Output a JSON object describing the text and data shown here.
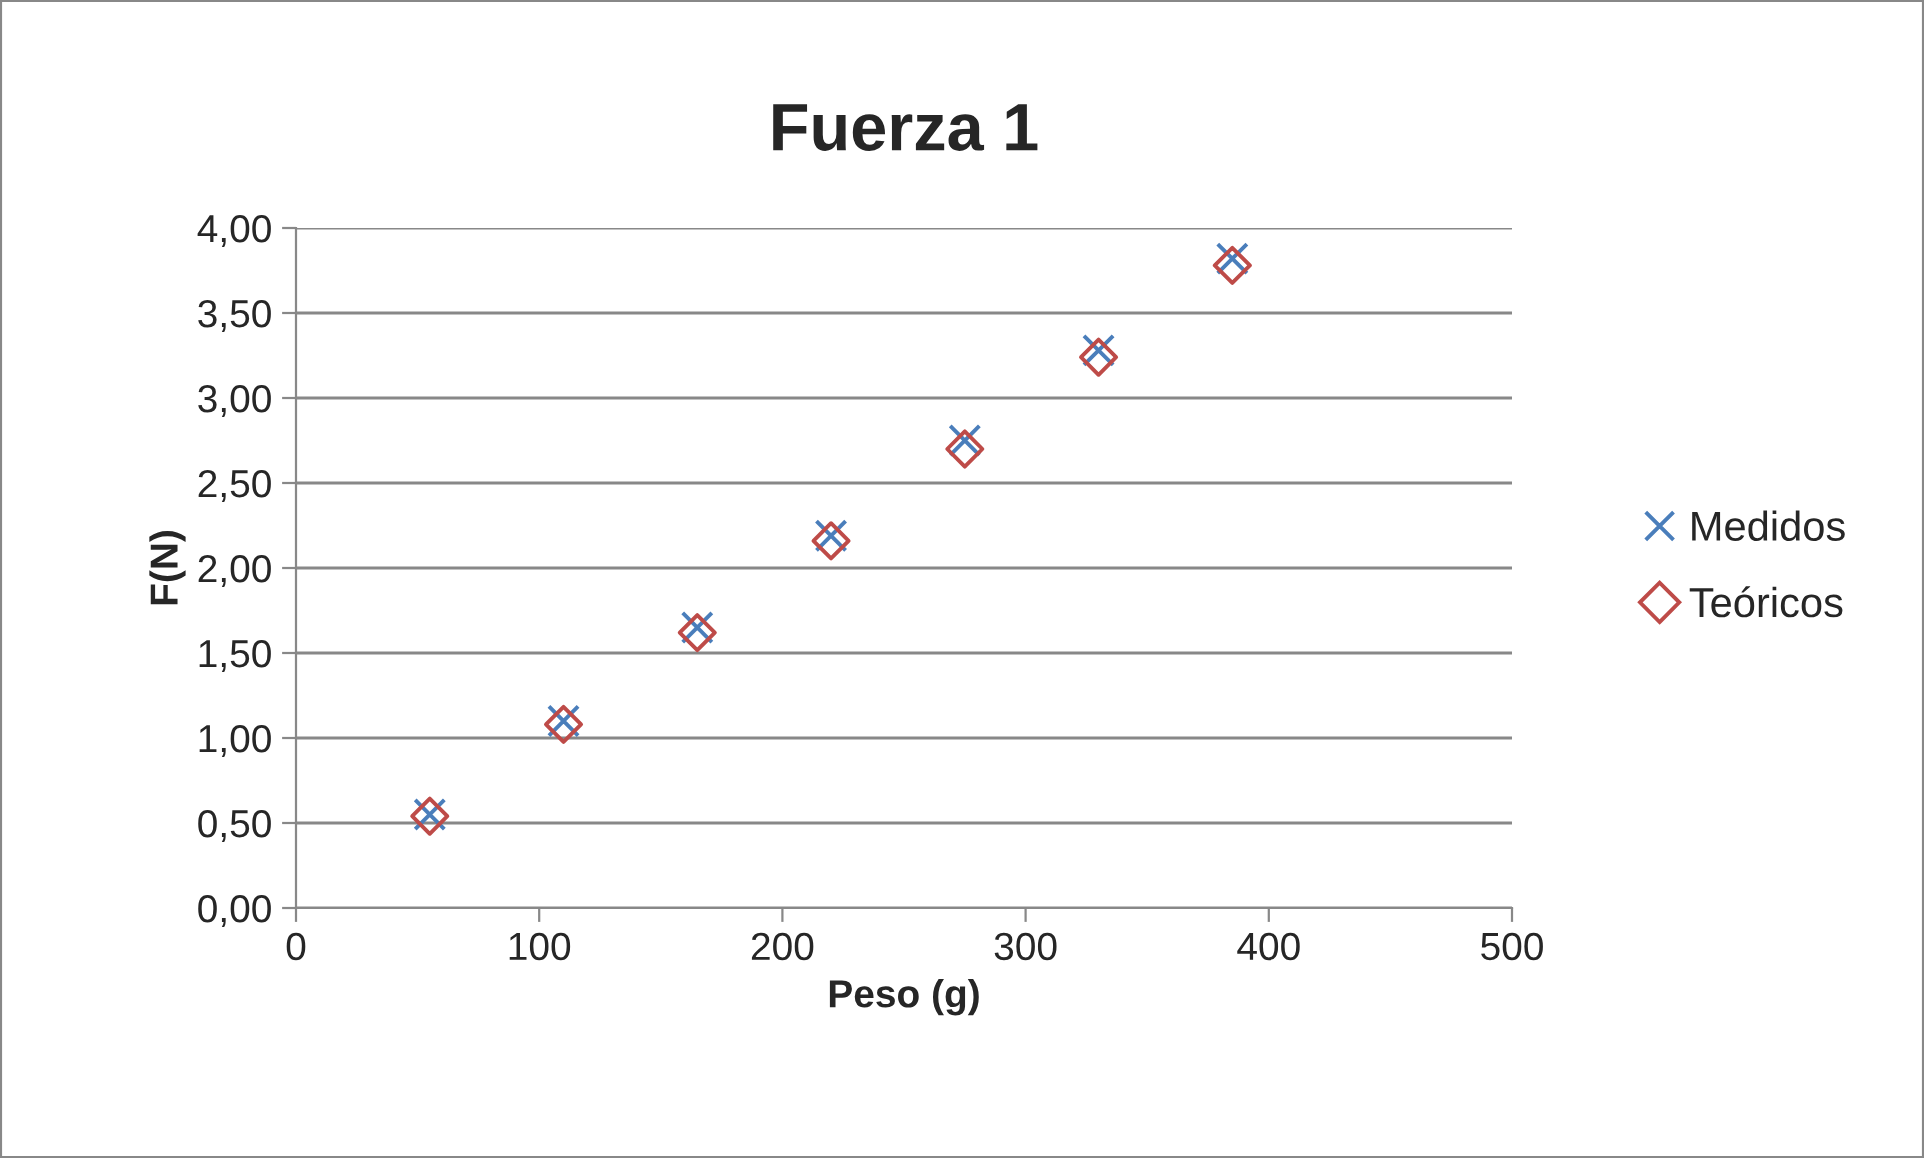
{
  "chart_data": {
    "type": "scatter",
    "title": "Fuerza 1",
    "xlabel": "Peso (g)",
    "ylabel": "F(N)",
    "series": [
      {
        "name": "Medidos",
        "color": "#4a7ebb",
        "marker": "cross",
        "x": [
          55,
          110,
          165,
          220,
          275,
          330,
          385
        ],
        "values": [
          0.55,
          1.1,
          1.65,
          2.19,
          2.75,
          3.28,
          3.82
        ]
      },
      {
        "name": "Teóricos",
        "color": "#be4b48",
        "marker": "diamond",
        "x": [
          55,
          110,
          165,
          220,
          275,
          330,
          385
        ],
        "values": [
          0.54,
          1.08,
          1.62,
          2.16,
          2.7,
          3.24,
          3.78
        ]
      }
    ],
    "xlim": [
      0,
      500
    ],
    "xticks": [
      0,
      100,
      200,
      300,
      400,
      500
    ],
    "ylim": [
      0,
      4
    ],
    "yticks": [
      {
        "value": 0,
        "label": "0,00"
      },
      {
        "value": 0.5,
        "label": "0,50"
      },
      {
        "value": 1,
        "label": "1,00"
      },
      {
        "value": 1.5,
        "label": "1,50"
      },
      {
        "value": 2,
        "label": "2,00"
      },
      {
        "value": 2.5,
        "label": "2,50"
      },
      {
        "value": 3,
        "label": "3,00"
      },
      {
        "value": 3.5,
        "label": "3,50"
      },
      {
        "value": 4,
        "label": "4,00"
      }
    ],
    "grid": "y",
    "legend": "right"
  }
}
